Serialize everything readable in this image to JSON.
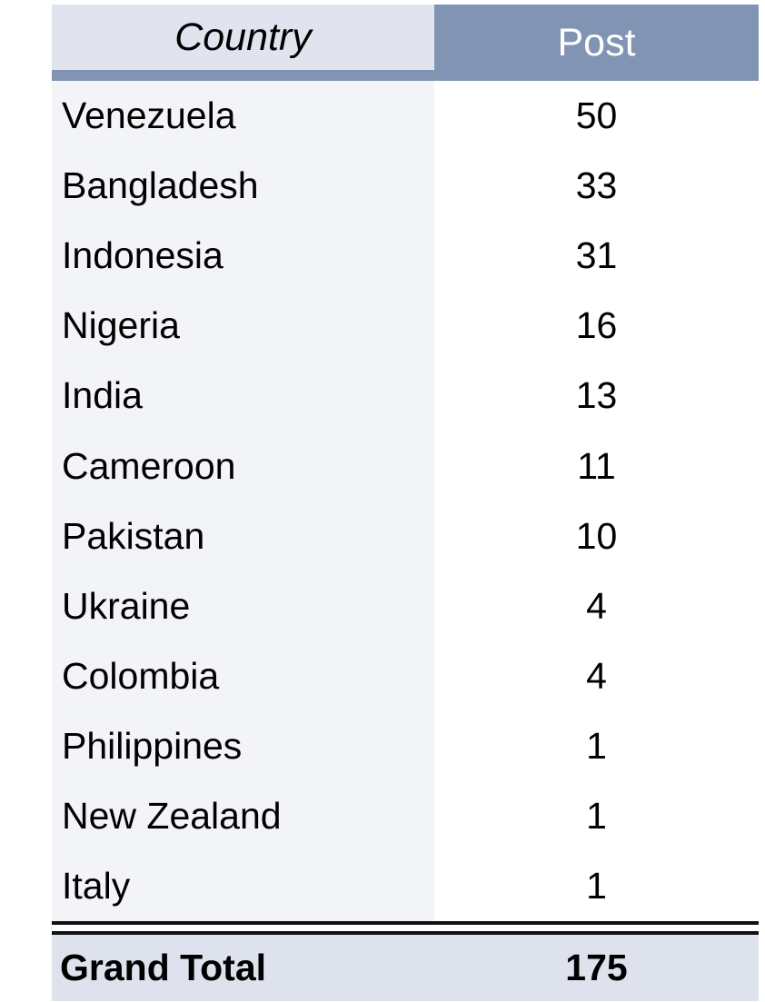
{
  "table": {
    "columns": [
      {
        "label": "Country"
      },
      {
        "label": "Post"
      }
    ],
    "rows": [
      {
        "country": "Venezuela",
        "post": "50"
      },
      {
        "country": "Bangladesh",
        "post": "33"
      },
      {
        "country": "Indonesia",
        "post": "31"
      },
      {
        "country": "Nigeria",
        "post": "16"
      },
      {
        "country": "India",
        "post": "13"
      },
      {
        "country": "Cameroon",
        "post": "11"
      },
      {
        "country": "Pakistan",
        "post": "10"
      },
      {
        "country": "Ukraine",
        "post": "4"
      },
      {
        "country": "Colombia",
        "post": "4"
      },
      {
        "country": "Philippines",
        "post": "1"
      },
      {
        "country": "New Zealand",
        "post": "1"
      },
      {
        "country": "Italy",
        "post": "1"
      }
    ],
    "footer": {
      "label": "Grand Total",
      "total": "175"
    }
  },
  "chart_data": {
    "type": "table",
    "title": "",
    "columns": [
      "Country",
      "Post"
    ],
    "categories": [
      "Venezuela",
      "Bangladesh",
      "Indonesia",
      "Nigeria",
      "India",
      "Cameroon",
      "Pakistan",
      "Ukraine",
      "Colombia",
      "Philippines",
      "New Zealand",
      "Italy"
    ],
    "values": [
      50,
      33,
      31,
      16,
      13,
      11,
      10,
      4,
      4,
      1,
      1,
      1
    ],
    "total_label": "Grand Total",
    "total": 175
  },
  "colors": {
    "header_fill": "#8294B4",
    "header_country_fill": "#E1E4EE",
    "header_text": "#FFFFFF",
    "row_fill": "#F3F4F8",
    "total_fill": "#DDE2EC",
    "text": "#000000",
    "separator": "#111111"
  }
}
